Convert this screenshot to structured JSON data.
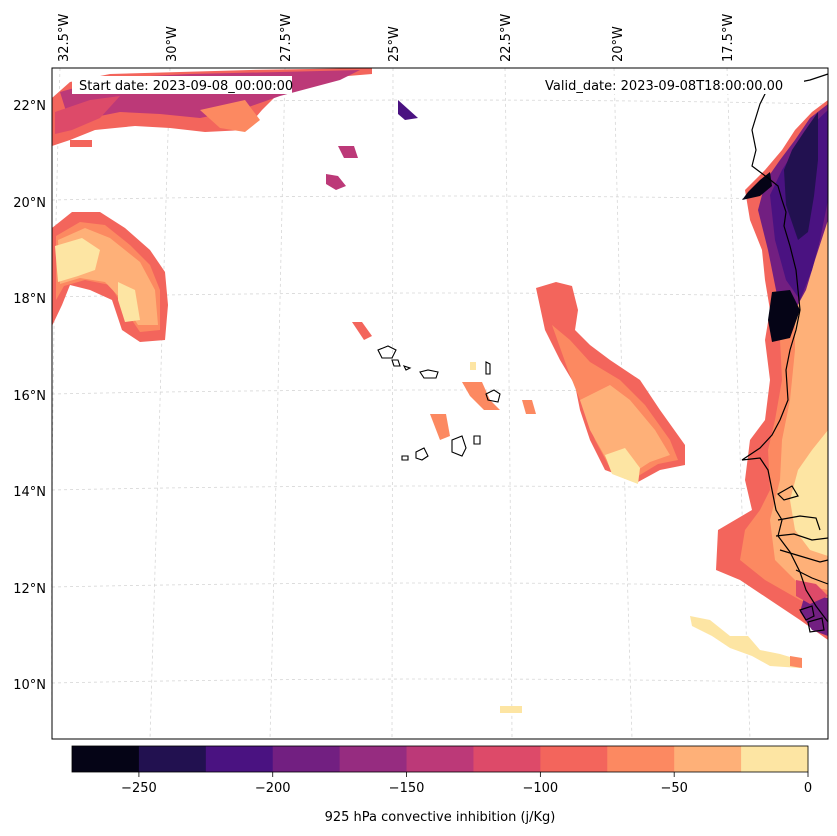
{
  "map": {
    "start_label": "Start date: 2023-09-08_00:00:00",
    "valid_label": "Valid_date: 2023-09-08T18:00:00.00",
    "lon_labels": [
      "32.5°W",
      "30°W",
      "27.5°W",
      "25°W",
      "22.5°W",
      "20°W",
      "17.5°W"
    ],
    "lat_labels": [
      "22°N",
      "20°N",
      "18°N",
      "16°N",
      "14°N",
      "12°N",
      "10°N"
    ],
    "variable": "925 hPa convective inhibition",
    "units": "j/Kg"
  },
  "colorbar": {
    "label": "925 hPa convective inhibition (j/Kg)",
    "levels": [
      -275,
      -250,
      -225,
      -200,
      -175,
      -150,
      -125,
      -100,
      -75,
      -50,
      -25,
      0
    ],
    "tick_labels": [
      "−250",
      "−200",
      "−150",
      "−100",
      "−50",
      "0"
    ],
    "tick_values": [
      -250,
      -200,
      -150,
      -100,
      -50,
      0
    ],
    "colors": [
      "#050416",
      "#221150",
      "#4a1281",
      "#721f81",
      "#962c80",
      "#bc3978",
      "#dd4a69",
      "#f3655c",
      "#fc8961",
      "#feb078",
      "#fde5a3"
    ]
  }
}
